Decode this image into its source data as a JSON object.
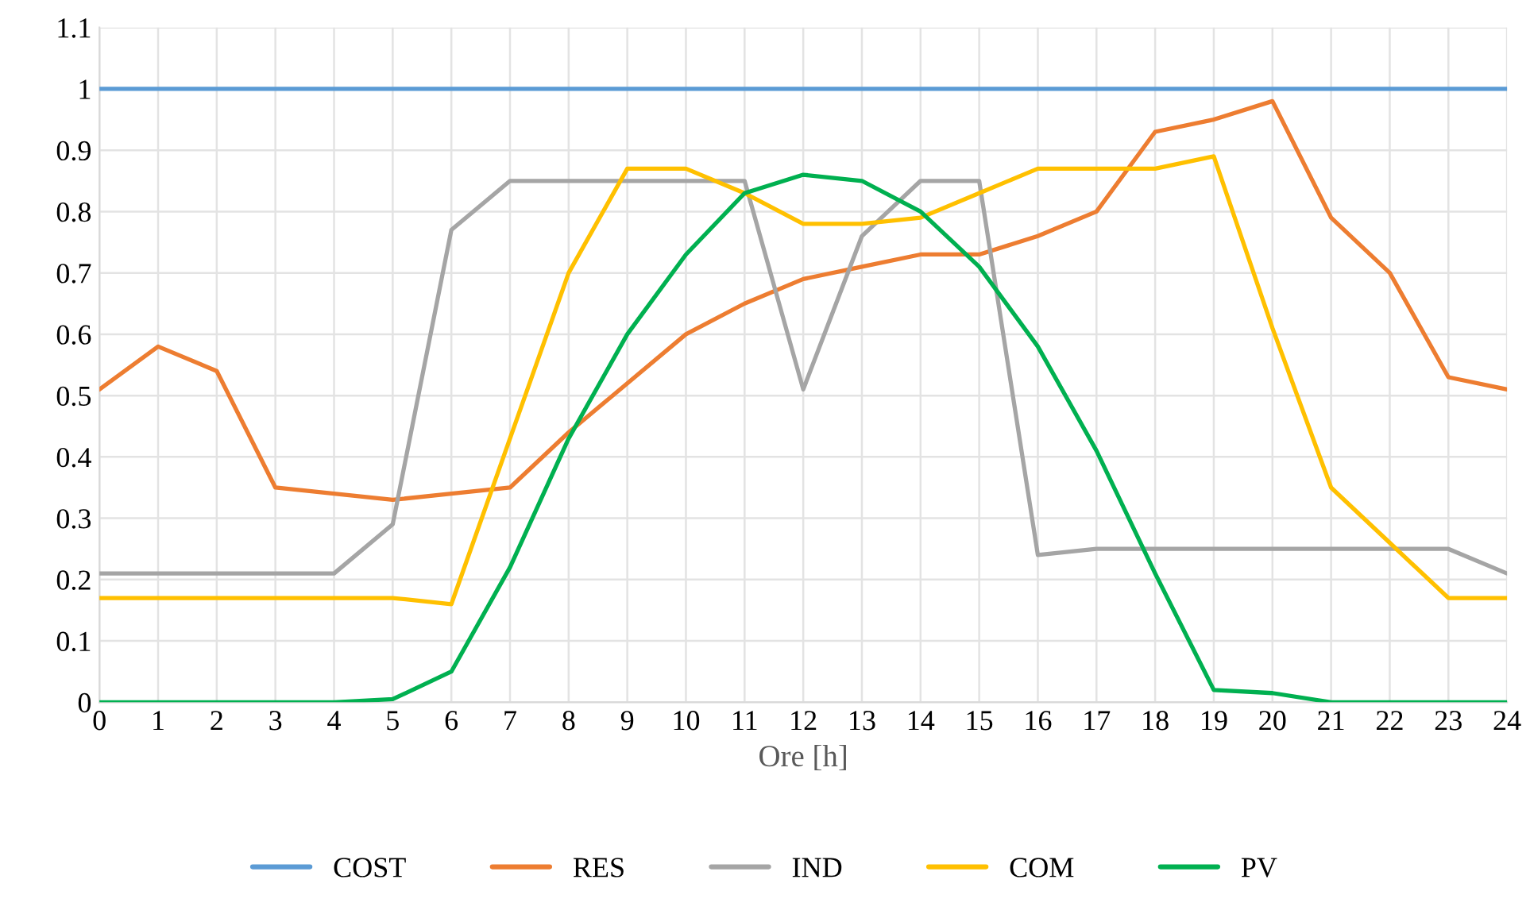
{
  "chart_data": {
    "type": "line",
    "xlabel": "Ore [h]",
    "x": [
      0,
      1,
      2,
      3,
      4,
      5,
      6,
      7,
      8,
      9,
      10,
      11,
      12,
      13,
      14,
      15,
      16,
      17,
      18,
      19,
      20,
      21,
      22,
      23,
      24
    ],
    "xlim": [
      0,
      24
    ],
    "xticks": [
      0,
      1,
      2,
      3,
      4,
      5,
      6,
      7,
      8,
      9,
      10,
      11,
      12,
      13,
      14,
      15,
      16,
      17,
      18,
      19,
      20,
      21,
      22,
      23,
      24
    ],
    "ylim": [
      0,
      1.1
    ],
    "yticks": [
      0,
      0.1,
      0.2,
      0.3,
      0.4,
      0.5,
      0.6,
      0.7,
      0.8,
      0.9,
      1,
      1.1
    ],
    "grid": true,
    "legend": "bottom",
    "marker": "none",
    "line_style": "solid",
    "series": [
      {
        "name": "COST",
        "color": "#5b9bd5",
        "values": [
          1,
          1,
          1,
          1,
          1,
          1,
          1,
          1,
          1,
          1,
          1,
          1,
          1,
          1,
          1,
          1,
          1,
          1,
          1,
          1,
          1,
          1,
          1,
          1,
          1
        ]
      },
      {
        "name": "RES",
        "color": "#ed7d31",
        "values": [
          0.51,
          0.58,
          0.54,
          0.35,
          0.34,
          0.33,
          0.34,
          0.35,
          0.44,
          0.52,
          0.6,
          0.65,
          0.69,
          0.71,
          0.73,
          0.73,
          0.76,
          0.8,
          0.93,
          0.95,
          0.98,
          0.79,
          0.7,
          0.53,
          0.51
        ]
      },
      {
        "name": "IND",
        "color": "#a5a5a5",
        "values": [
          0.21,
          0.21,
          0.21,
          0.21,
          0.21,
          0.29,
          0.77,
          0.85,
          0.85,
          0.85,
          0.85,
          0.85,
          0.51,
          0.76,
          0.85,
          0.85,
          0.24,
          0.25,
          0.25,
          0.25,
          0.25,
          0.25,
          0.25,
          0.25,
          0.21
        ]
      },
      {
        "name": "COM",
        "color": "#ffc000",
        "values": [
          0.17,
          0.17,
          0.17,
          0.17,
          0.17,
          0.17,
          0.16,
          0.43,
          0.7,
          0.87,
          0.87,
          0.83,
          0.78,
          0.78,
          0.79,
          0.83,
          0.87,
          0.87,
          0.87,
          0.89,
          0.61,
          0.35,
          0.26,
          0.17,
          0.17
        ]
      },
      {
        "name": "PV",
        "color": "#00b050",
        "values": [
          0,
          0,
          0,
          0,
          0,
          0.005,
          0.05,
          0.22,
          0.43,
          0.6,
          0.73,
          0.83,
          0.86,
          0.85,
          0.8,
          0.71,
          0.58,
          0.41,
          0.21,
          0.02,
          0.015,
          0,
          0,
          0,
          0
        ]
      }
    ]
  }
}
